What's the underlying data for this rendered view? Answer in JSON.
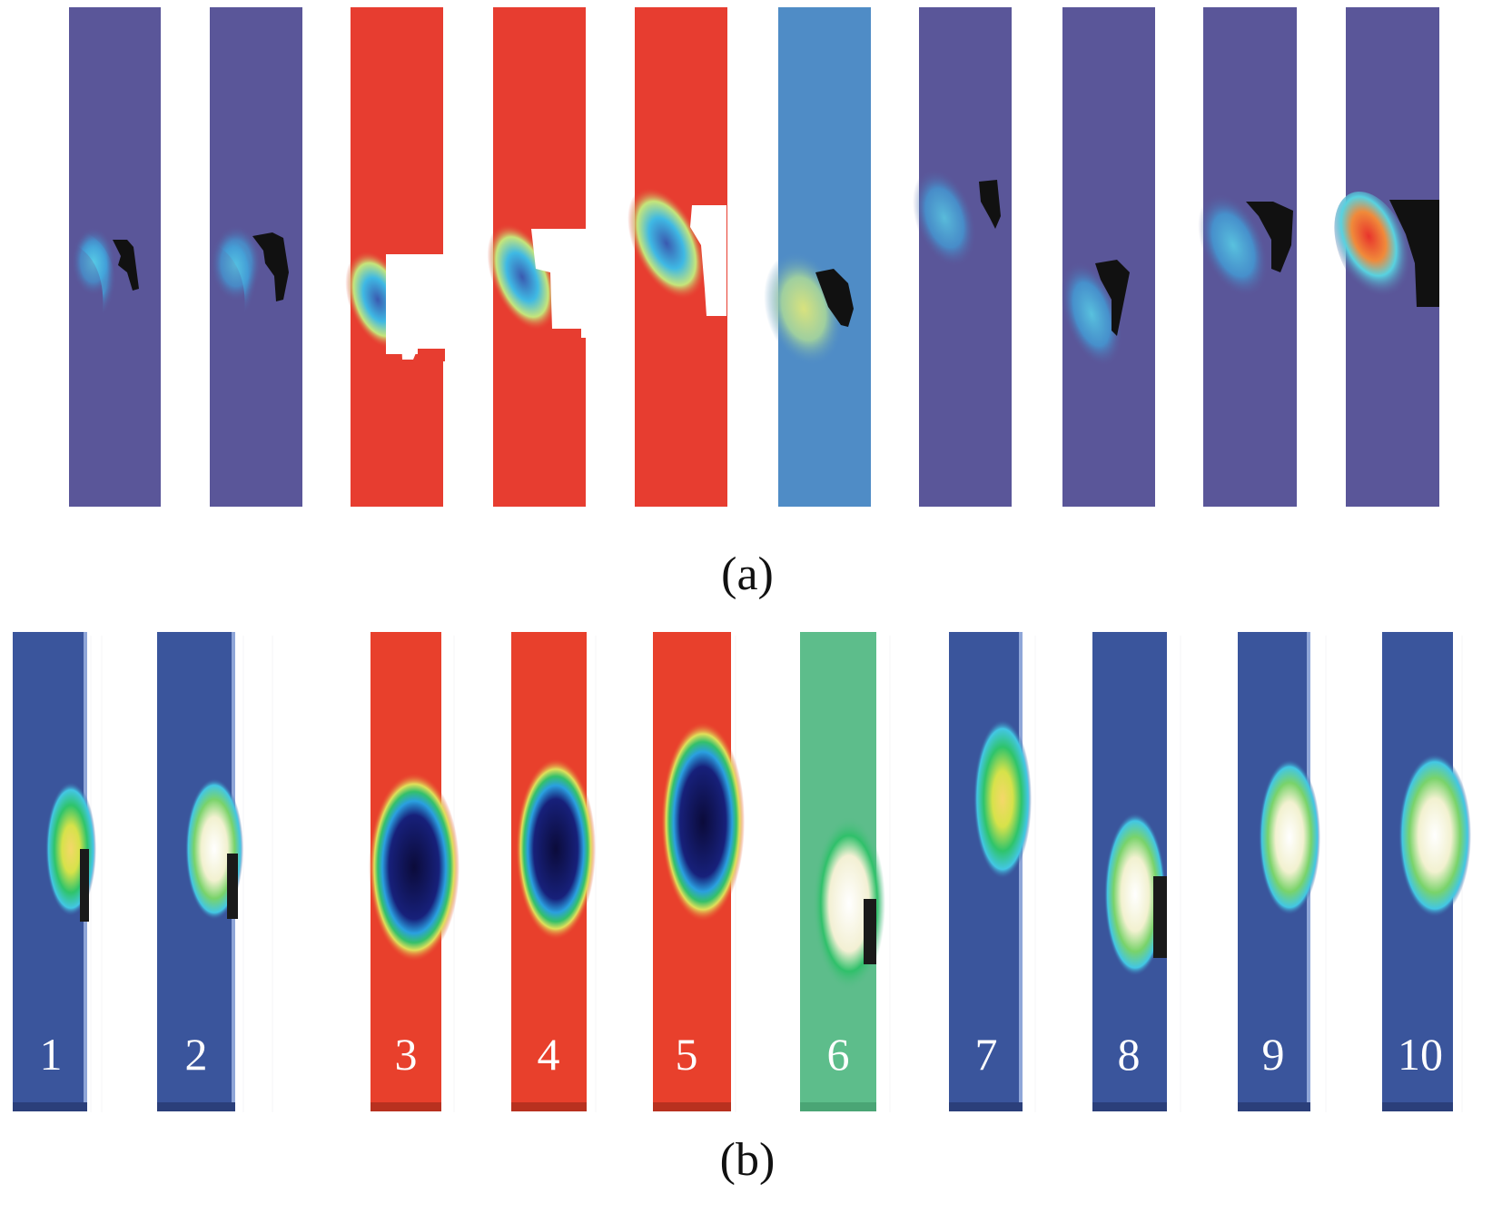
{
  "figure": {
    "subfigure_a": {
      "caption": "(a)"
    },
    "subfigure_b": {
      "caption": "(b)"
    },
    "panel_labels": [
      "1",
      "2",
      "3",
      "4",
      "5",
      "6",
      "7",
      "8",
      "9",
      "10"
    ]
  },
  "colors": {
    "background_blue_a": "#5a5699",
    "background_red_a": "#e73d30",
    "background_lightblue_a": "#4f8cc6",
    "background_blue_b": "#3a559c",
    "background_red_b": "#e8402c",
    "background_green_b": "#5dbd8b",
    "cavity_black": "#111111"
  }
}
